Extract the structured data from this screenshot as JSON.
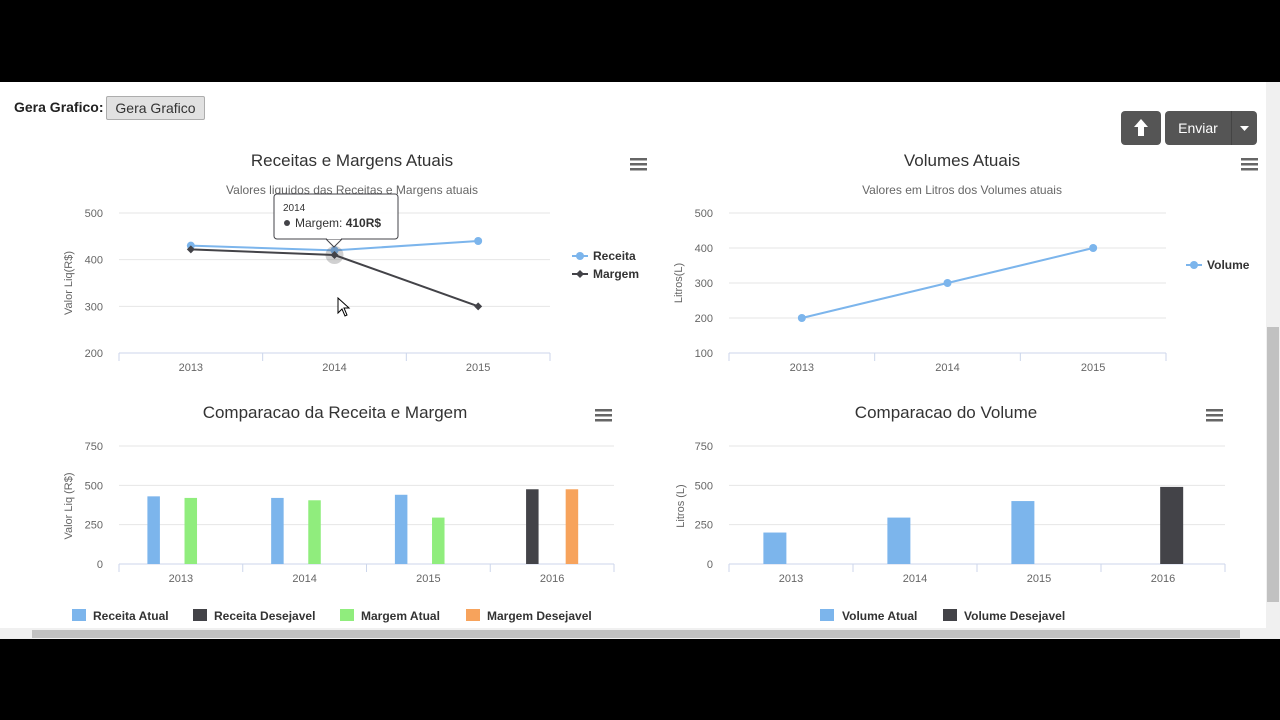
{
  "toolbar": {
    "gera_label": "Gera Grafico:",
    "gera_button": "Gera Grafico",
    "enviar_label": "Enviar",
    "up_icon": "arrow-up-icon",
    "caret_icon": "caret-down-icon"
  },
  "menu_icon": "hamburger-menu-icon",
  "colors": {
    "receita": "#7cb5ec",
    "margem": "#434348",
    "margem_verde": "#90ed7d",
    "margem_desejavel": "#f7a35c",
    "grid": "#e6e6e6",
    "axis": "#ccd6eb"
  },
  "tooltip": {
    "header": "2014",
    "series": "Margem",
    "value": "410R$",
    "sep": ": "
  },
  "chart_data": [
    {
      "type": "line",
      "title": "Receitas e Margens Atuais",
      "subtitle": "Valores liquidos das Receitas e Margens atuais",
      "xlabel": "",
      "ylabel": "Valor Liq(R$)",
      "categories": [
        "2013",
        "2014",
        "2015"
      ],
      "ylim": [
        200,
        500
      ],
      "yticks": [
        "200",
        "300",
        "400",
        "500"
      ],
      "series": [
        {
          "name": "Receita",
          "values": [
            430,
            420,
            440
          ]
        },
        {
          "name": "Margem",
          "values": [
            422,
            410,
            300
          ]
        }
      ],
      "legend": "right"
    },
    {
      "type": "line",
      "title": "Volumes Atuais",
      "subtitle": "Valores em Litros dos Volumes atuais",
      "xlabel": "",
      "ylabel": "Litros(L)",
      "categories": [
        "2013",
        "2014",
        "2015"
      ],
      "ylim": [
        100,
        500
      ],
      "yticks": [
        "100",
        "200",
        "300",
        "400",
        "500"
      ],
      "series": [
        {
          "name": "Volume",
          "values": [
            200,
            300,
            400
          ]
        }
      ],
      "legend": "right"
    },
    {
      "type": "bar",
      "title": "Comparacao da Receita e Margem",
      "xlabel": "",
      "ylabel": "Valor Liq (R$)",
      "categories": [
        "2013",
        "2014",
        "2015",
        "2016"
      ],
      "ylim": [
        0,
        750
      ],
      "yticks": [
        "0",
        "250",
        "500",
        "750"
      ],
      "series": [
        {
          "name": "Receita Atual",
          "values": [
            430,
            420,
            440,
            null
          ]
        },
        {
          "name": "Receita Desejavel",
          "values": [
            null,
            null,
            null,
            475
          ]
        },
        {
          "name": "Margem Atual",
          "values": [
            420,
            405,
            295,
            null
          ]
        },
        {
          "name": "Margem Desejavel",
          "values": [
            null,
            null,
            null,
            475
          ]
        }
      ],
      "legend": "bottom"
    },
    {
      "type": "bar",
      "title": "Comparacao do Volume",
      "xlabel": "",
      "ylabel": "Litros (L)",
      "categories": [
        "2013",
        "2014",
        "2015",
        "2016"
      ],
      "ylim": [
        0,
        750
      ],
      "yticks": [
        "0",
        "250",
        "500",
        "750"
      ],
      "series": [
        {
          "name": "Volume Atual",
          "values": [
            200,
            295,
            400,
            null
          ]
        },
        {
          "name": "Volume Desejavel",
          "values": [
            null,
            null,
            null,
            490
          ]
        }
      ],
      "legend": "bottom"
    }
  ]
}
